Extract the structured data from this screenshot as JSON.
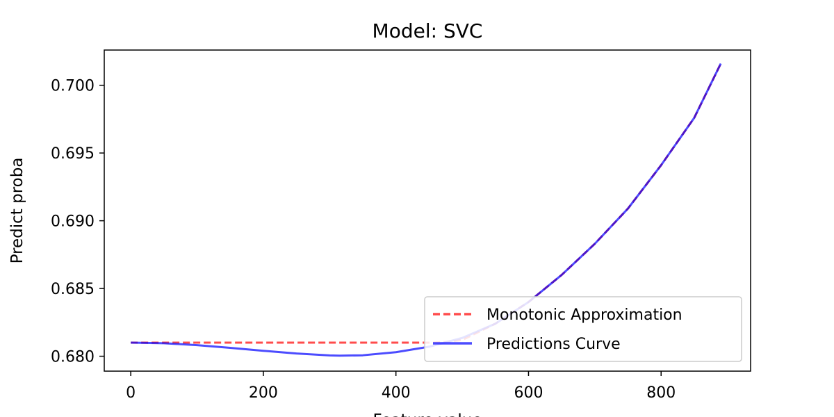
{
  "chart_data": {
    "type": "line",
    "title": "Model: SVC",
    "xlabel": "Feature value",
    "ylabel": "Predict proba",
    "xlim": [
      -40,
      935
    ],
    "ylim": [
      0.6789,
      0.7026
    ],
    "x_ticks": [
      0,
      200,
      400,
      600,
      800
    ],
    "y_ticks": [
      0.68,
      0.685,
      0.69,
      0.695,
      0.7
    ],
    "y_tick_labels": [
      "0.680",
      "0.685",
      "0.690",
      "0.695",
      "0.700"
    ],
    "grid": false,
    "legend_position": "lower-right",
    "series": [
      {
        "name": "Monotonic Approximation",
        "color": "#ff0000",
        "style": "dashed",
        "x": [
          0,
          100,
          200,
          300,
          400,
          450,
          475,
          500,
          550,
          600,
          650,
          700,
          750,
          800,
          850,
          890
        ],
        "y": [
          0.681,
          0.681,
          0.681,
          0.681,
          0.681,
          0.681,
          0.68105,
          0.6812,
          0.6824,
          0.684,
          0.686,
          0.6883,
          0.6909,
          0.6941,
          0.6976,
          0.7016
        ]
      },
      {
        "name": "Predictions Curve",
        "color": "#0000ff",
        "style": "solid",
        "x": [
          0,
          50,
          100,
          150,
          200,
          250,
          300,
          315,
          350,
          400,
          450,
          500,
          550,
          600,
          650,
          700,
          750,
          800,
          850,
          890
        ],
        "y": [
          0.681,
          0.68096,
          0.68082,
          0.68062,
          0.6804,
          0.6802,
          0.68006,
          0.68004,
          0.68007,
          0.6803,
          0.6807,
          0.68135,
          0.6824,
          0.684,
          0.686,
          0.6883,
          0.6909,
          0.6941,
          0.6976,
          0.7016
        ]
      }
    ]
  }
}
